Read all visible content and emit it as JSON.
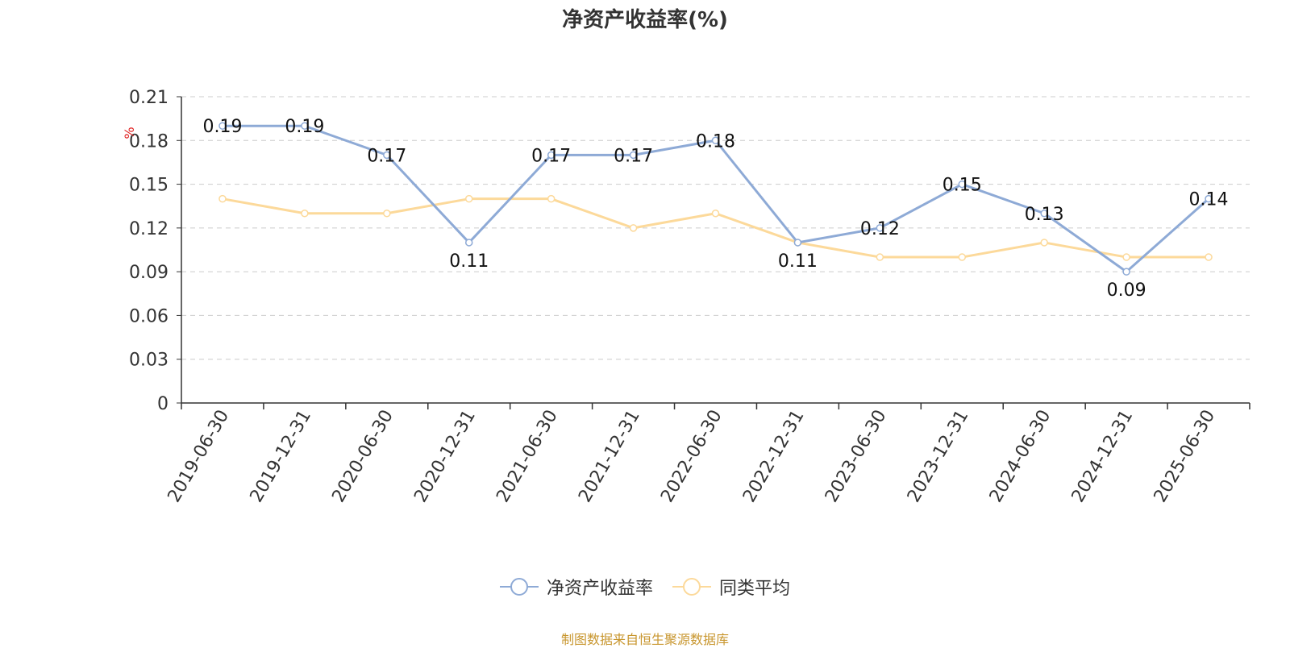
{
  "chart_data": {
    "type": "line",
    "title": "净资产收益率(%)",
    "ylabel": "%",
    "categories": [
      "2019-06-30",
      "2019-12-31",
      "2020-06-30",
      "2020-12-31",
      "2021-06-30",
      "2021-12-31",
      "2022-06-30",
      "2022-12-31",
      "2023-06-30",
      "2023-12-31",
      "2024-06-30",
      "2024-12-31",
      "2025-06-30"
    ],
    "y_ticks": [
      "0",
      "0.03",
      "0.06",
      "0.09",
      "0.12",
      "0.15",
      "0.18",
      "0.21"
    ],
    "ylim": [
      0,
      0.21
    ],
    "grid": true,
    "legend_position": "bottom",
    "series": [
      {
        "name": "净资产收益率",
        "color": "#8eaad6",
        "labels_shown": true,
        "values": [
          0.19,
          0.19,
          0.17,
          0.11,
          0.17,
          0.17,
          0.18,
          0.11,
          0.12,
          0.15,
          0.13,
          0.09,
          0.14
        ]
      },
      {
        "name": "同类平均",
        "color": "#fcd99a",
        "labels_shown": false,
        "values": [
          0.14,
          0.13,
          0.13,
          0.14,
          0.14,
          0.12,
          0.13,
          0.11,
          0.1,
          0.1,
          0.11,
          0.1,
          0.1
        ]
      }
    ]
  },
  "source_note": "制图数据来自恒生聚源数据库"
}
